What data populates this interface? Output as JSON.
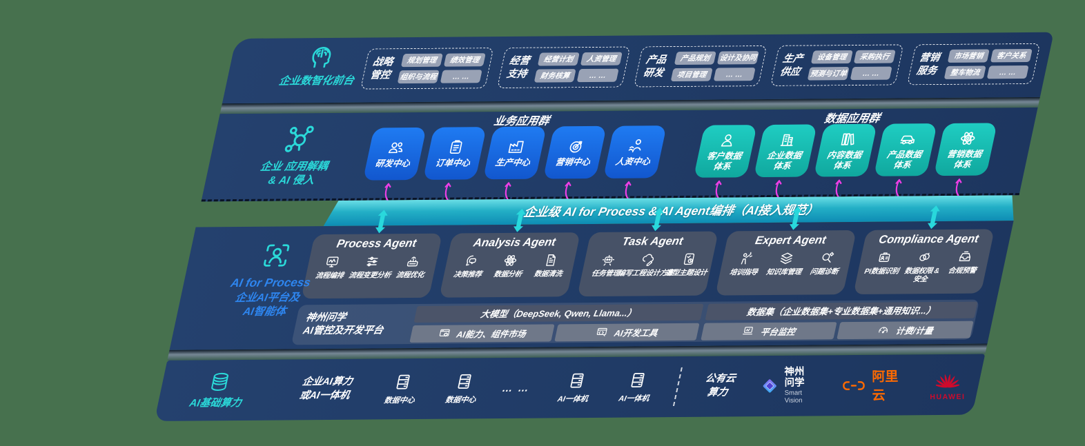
{
  "colors": {
    "background": "#47714E",
    "panel_navy": "#223C68",
    "accent_cyan": "#2BD9D9",
    "accent_blue": "#2E86F0",
    "box_blue": "#1B6FE8",
    "box_teal": "#17C2B7",
    "band_teal": "#1B9FC0",
    "arrow_magenta": "#EE3FE6",
    "chip_gray": "#A0A8B9",
    "agent_card": "#495367",
    "aliyun_orange": "#FF6A00",
    "huawei_red": "#CF0A2C"
  },
  "front_office": {
    "label": "企业数智化前台",
    "icon": "digital-brain-icon",
    "groups": [
      {
        "name": "战略\n管控",
        "chips": [
          "规划管理",
          "绩效管理",
          "组织与流程",
          "… …"
        ]
      },
      {
        "name": "经营\n支持",
        "chips": [
          "经营计划",
          "人资管理",
          "财务核算",
          "… …"
        ]
      },
      {
        "name": "产品\n研发",
        "chips": [
          "产品规划",
          "设计及协同",
          "项目管理",
          "… …"
        ]
      },
      {
        "name": "生产\n供应",
        "chips": [
          "设备管理",
          "采购执行",
          "预测与订单",
          "… …"
        ]
      },
      {
        "name": "营销\n服务",
        "chips": [
          "市场营销",
          "客户关系",
          "整车物流",
          "… …"
        ]
      }
    ]
  },
  "app_layer": {
    "label": "企业 应用解耦\n& AI 侵入",
    "icon": "decouple-network-icon",
    "business_title": "业务应用群",
    "data_title": "数据应用群",
    "business_apps": [
      {
        "label": "研发中心",
        "icon": "team-icon"
      },
      {
        "label": "订单中心",
        "icon": "order-clipboard-icon"
      },
      {
        "label": "生产中心",
        "icon": "factory-icon"
      },
      {
        "label": "营销中心",
        "icon": "target-icon"
      },
      {
        "label": "人资中心",
        "icon": "hr-people-icon"
      }
    ],
    "data_apps": [
      {
        "label": "客户数据\n体系",
        "icon": "customer-user-icon"
      },
      {
        "label": "企业数据\n体系",
        "icon": "enterprise-building-icon"
      },
      {
        "label": "内容数据\n体系",
        "icon": "content-books-icon"
      },
      {
        "label": "产品数据\n体系",
        "icon": "product-car-icon"
      },
      {
        "label": "营销数据\n体系",
        "icon": "marketing-atom-icon"
      }
    ]
  },
  "band": {
    "title": "企业级 AI for Process & AI Agent编排（AI接入规范）"
  },
  "agent_layer": {
    "label_line1": "AI for Process",
    "label_line2": "企业AI平台及\nAI智能体",
    "icon": "ai-scan-person-icon",
    "agents": [
      {
        "title": "Process Agent",
        "items": [
          {
            "label": "流程编排",
            "icon": "monitor-wave-icon"
          },
          {
            "label": "流程变更分析",
            "icon": "sliders-icon"
          },
          {
            "label": "流程优化",
            "icon": "optimize-gear-icon"
          }
        ]
      },
      {
        "title": "Analysis Agent",
        "items": [
          {
            "label": "决策推荐",
            "icon": "decision-head-icon"
          },
          {
            "label": "数据分析",
            "icon": "atom-icon"
          },
          {
            "label": "数据清洗",
            "icon": "document-clean-icon"
          }
        ]
      },
      {
        "title": "Task Agent",
        "items": [
          {
            "label": "任务管理",
            "icon": "robot-icon"
          },
          {
            "label": "编写工程设计方案",
            "icon": "cloud-design-icon"
          },
          {
            "label": "造型主题设计",
            "icon": "tablet-check-icon"
          }
        ]
      },
      {
        "title": "Expert Agent",
        "items": [
          {
            "label": "培训指导",
            "icon": "training-icon"
          },
          {
            "label": "知识库管理",
            "icon": "knowledge-layers-icon"
          },
          {
            "label": "问题诊断",
            "icon": "diagnosis-icon"
          }
        ]
      },
      {
        "title": "Compliance Agent",
        "items": [
          {
            "label": "PI数据识别",
            "icon": "id-card-icon"
          },
          {
            "label": "数据权限 &\n安全",
            "icon": "linked-rings-icon"
          },
          {
            "label": "合规预警",
            "icon": "alert-envelope-icon"
          }
        ]
      }
    ],
    "platform": {
      "label": "神州问学\nAI管控及开发平台",
      "model_bar": "大模型（DeepSeek, Qwen, Llama...）",
      "tool_items": [
        {
          "label": "AI能力、组件市场",
          "icon": "app-market-icon"
        },
        {
          "label": "AI开发工具",
          "icon": "dev-tools-icon"
        }
      ],
      "dataset_bar": "数据集（企业数据集+专业数据集+通用知识...）",
      "ops_items": [
        {
          "label": "平台监控",
          "icon": "platform-monitor-icon"
        },
        {
          "label": "计费/计量",
          "icon": "billing-gauge-icon"
        }
      ]
    }
  },
  "infra_layer": {
    "label": "AI基础算力",
    "icon": "compute-db-icon",
    "compute_label": "企业AI算力\n或AI一体机",
    "nodes": [
      {
        "label": "数据中心",
        "icon": "server-icon"
      },
      {
        "label": "数据中心",
        "icon": "server-icon"
      },
      {
        "label": "… …",
        "icon": ""
      },
      {
        "label": "AI一体机",
        "icon": "server-icon"
      },
      {
        "label": "AI一体机",
        "icon": "server-icon"
      }
    ],
    "cloud_label": "公有云\n算力",
    "vendors": [
      {
        "name": "神州问学",
        "sub": "Smart Vision",
        "icon": "smart-vision-logo"
      },
      {
        "name": "阿里云",
        "sub": "",
        "icon": "aliyun-logo"
      },
      {
        "name": "HUAWEI",
        "sub": "",
        "icon": "huawei-logo"
      }
    ]
  }
}
